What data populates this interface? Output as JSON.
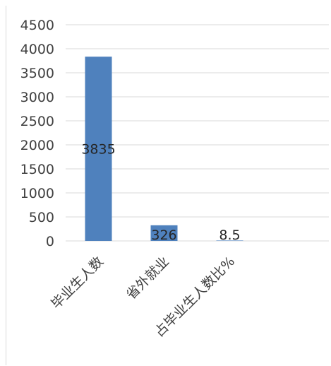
{
  "chart_data": {
    "type": "bar",
    "categories": [
      "毕业生人数",
      "省外就业",
      "占毕业生人数比%"
    ],
    "values": [
      3835,
      326,
      8.5
    ],
    "data_labels": [
      "3835",
      "326",
      "8.5"
    ],
    "title": "",
    "xlabel": "",
    "ylabel": "",
    "ylim": [
      0,
      4500
    ],
    "yticks": [
      0,
      500,
      1000,
      1500,
      2000,
      2500,
      3000,
      3500,
      4000,
      4500
    ],
    "grid": true,
    "legend": "none",
    "colors": {
      "bar": "#4f81bd",
      "grid": "#d9d9d9",
      "text": "#404040"
    }
  }
}
